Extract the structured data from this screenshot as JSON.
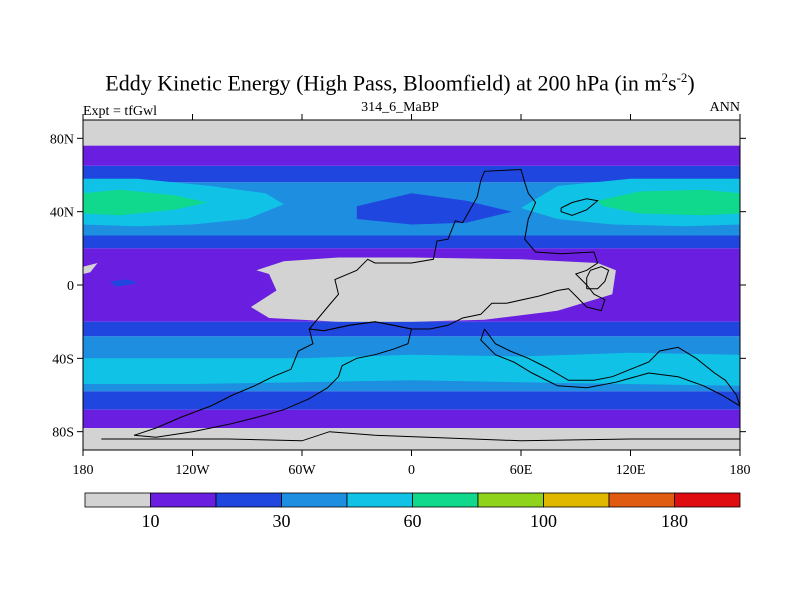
{
  "chart_data": {
    "type": "heatmap",
    "title_main": "Eddy Kinetic Energy (High Pass, Bloomfield) at 200 hPa (in m",
    "title_sup1": "2",
    "title_mid": "s",
    "title_sup2": "-2",
    "title_end": ")",
    "subtitle": "314_6_MaBP",
    "left_label": "Expt = tfGwl",
    "right_label": "ANN",
    "x_ticks": [
      {
        "lon": -180,
        "label": "180"
      },
      {
        "lon": -120,
        "label": "120W"
      },
      {
        "lon": -60,
        "label": "60W"
      },
      {
        "lon": 0,
        "label": "0"
      },
      {
        "lon": 60,
        "label": "60E"
      },
      {
        "lon": 120,
        "label": "120E"
      },
      {
        "lon": 180,
        "label": "180"
      }
    ],
    "y_ticks": [
      {
        "lat": 80,
        "label": "80N"
      },
      {
        "lat": 40,
        "label": "40N"
      },
      {
        "lat": 0,
        "label": "0"
      },
      {
        "lat": -40,
        "label": "40S"
      },
      {
        "lat": -80,
        "label": "80S"
      }
    ],
    "xlim": [
      -180,
      180
    ],
    "ylim": [
      -90,
      90
    ],
    "colorbar": {
      "colors": [
        "#d3d3d3",
        "#6a1fe0",
        "#1f47e0",
        "#1e8ee0",
        "#10c3e6",
        "#10d88c",
        "#8fd41a",
        "#e0b800",
        "#e05a10",
        "#e00d10"
      ],
      "labels": [
        {
          "after": 1,
          "text": "10"
        },
        {
          "after": 3,
          "text": "30"
        },
        {
          "after": 5,
          "text": "60"
        },
        {
          "after": 7,
          "text": "100"
        },
        {
          "after": 9,
          "text": "180"
        }
      ]
    },
    "zonal_bands": [
      {
        "lat_top": 90,
        "lat_bot": 76,
        "level": 0
      },
      {
        "lat_top": 76,
        "lat_bot": 65,
        "level": 1
      },
      {
        "lat_top": 65,
        "lat_bot": 56,
        "level": 2
      },
      {
        "lat_top": 56,
        "lat_bot": 27,
        "level": 3
      },
      {
        "lat_top": 27,
        "lat_bot": 20,
        "level": 2
      },
      {
        "lat_top": 20,
        "lat_bot": -20,
        "level": 1
      },
      {
        "lat_top": -20,
        "lat_bot": -28,
        "level": 2
      },
      {
        "lat_top": -28,
        "lat_bot": -58,
        "level": 3
      },
      {
        "lat_top": -58,
        "lat_bot": -68,
        "level": 2
      },
      {
        "lat_top": -68,
        "lat_bot": -78,
        "level": 1
      },
      {
        "lat_top": -78,
        "lat_bot": -90,
        "level": 0
      }
    ],
    "features": [
      {
        "name": "nh-jet-core-west",
        "level": 4,
        "pts": [
          [
            -180,
            58
          ],
          [
            -150,
            58
          ],
          [
            -110,
            54
          ],
          [
            -80,
            50
          ],
          [
            -70,
            44
          ],
          [
            -90,
            36
          ],
          [
            -120,
            33
          ],
          [
            -150,
            32
          ],
          [
            -180,
            33
          ]
        ]
      },
      {
        "name": "nh-jet-max-west",
        "level": 5,
        "pts": [
          [
            -180,
            50
          ],
          [
            -160,
            52
          ],
          [
            -130,
            49
          ],
          [
            -112,
            45
          ],
          [
            -130,
            41
          ],
          [
            -160,
            38
          ],
          [
            -180,
            39
          ]
        ]
      },
      {
        "name": "nh-jet-core-east",
        "level": 4,
        "pts": [
          [
            60,
            42
          ],
          [
            80,
            54
          ],
          [
            120,
            58
          ],
          [
            160,
            58
          ],
          [
            180,
            58
          ],
          [
            180,
            33
          ],
          [
            150,
            32
          ],
          [
            110,
            33
          ],
          [
            80,
            36
          ]
        ]
      },
      {
        "name": "nh-jet-max-east",
        "level": 5,
        "pts": [
          [
            102,
            46
          ],
          [
            125,
            51
          ],
          [
            160,
            52
          ],
          [
            180,
            50
          ],
          [
            180,
            39
          ],
          [
            160,
            38
          ],
          [
            125,
            39
          ],
          [
            105,
            43
          ]
        ]
      },
      {
        "name": "nh-jet-dip",
        "level": 2,
        "pts": [
          [
            -30,
            43
          ],
          [
            0,
            50
          ],
          [
            30,
            46
          ],
          [
            55,
            40
          ],
          [
            30,
            34
          ],
          [
            0,
            33
          ],
          [
            -30,
            36
          ]
        ]
      },
      {
        "name": "sh-core",
        "level": 4,
        "pts": [
          [
            -180,
            -40
          ],
          [
            -120,
            -40
          ],
          [
            -60,
            -40
          ],
          [
            0,
            -38
          ],
          [
            60,
            -39
          ],
          [
            120,
            -37
          ],
          [
            180,
            -38
          ],
          [
            180,
            -55
          ],
          [
            120,
            -54
          ],
          [
            60,
            -53
          ],
          [
            0,
            -52
          ],
          [
            -60,
            -53
          ],
          [
            -120,
            -54
          ],
          [
            -180,
            -54
          ]
        ]
      },
      {
        "name": "tropical-gap",
        "level": 0,
        "pts": [
          [
            -85,
            8
          ],
          [
            -70,
            13
          ],
          [
            -40,
            15
          ],
          [
            0,
            15
          ],
          [
            60,
            14
          ],
          [
            102,
            12
          ],
          [
            112,
            8
          ],
          [
            110,
            -5
          ],
          [
            80,
            -14
          ],
          [
            40,
            -19
          ],
          [
            0,
            -20
          ],
          [
            -40,
            -20
          ],
          [
            -78,
            -18
          ],
          [
            -88,
            -12
          ],
          [
            -74,
            -3
          ],
          [
            -78,
            6
          ]
        ]
      },
      {
        "name": "east-pacific-gap",
        "level": 0,
        "pts": [
          [
            -180,
            10
          ],
          [
            -172,
            12
          ],
          [
            -176,
            7
          ],
          [
            -180,
            6
          ]
        ]
      },
      {
        "name": "trop-blue-spot",
        "level": 2,
        "pts": [
          [
            -165,
            2
          ],
          [
            -155,
            3
          ],
          [
            -150,
            1
          ],
          [
            -162,
            -1
          ]
        ]
      }
    ],
    "outlines": [
      {
        "name": "north-continent",
        "pts": [
          [
            0,
            12
          ],
          [
            12,
            14
          ],
          [
            14,
            24
          ],
          [
            20,
            25
          ],
          [
            24,
            35
          ],
          [
            28,
            34
          ],
          [
            36,
            48
          ],
          [
            38,
            57
          ],
          [
            40,
            62
          ],
          [
            60,
            63
          ],
          [
            62,
            56
          ],
          [
            64,
            50
          ],
          [
            68,
            45
          ],
          [
            64,
            36
          ],
          [
            62,
            25
          ],
          [
            68,
            18
          ],
          [
            82,
            17
          ],
          [
            100,
            18
          ],
          [
            102,
            12
          ],
          [
            96,
            8
          ],
          [
            90,
            6
          ],
          [
            96,
            0
          ],
          [
            100,
            -5
          ],
          [
            106,
            -8
          ],
          [
            104,
            -14
          ],
          [
            96,
            -12
          ],
          [
            90,
            -6
          ],
          [
            86,
            -2
          ],
          [
            80,
            -3
          ],
          [
            70,
            -6
          ],
          [
            52,
            -10
          ],
          [
            44,
            -10
          ],
          [
            38,
            -16
          ],
          [
            28,
            -18
          ],
          [
            20,
            -22
          ],
          [
            10,
            -24
          ],
          [
            0,
            -24
          ],
          [
            -10,
            -22
          ],
          [
            -20,
            -20
          ],
          [
            -34,
            -22
          ],
          [
            -48,
            -25
          ],
          [
            -56,
            -24
          ],
          [
            -46,
            -12
          ],
          [
            -40,
            -5
          ],
          [
            -42,
            3
          ],
          [
            -30,
            8
          ],
          [
            -24,
            14
          ],
          [
            -20,
            12
          ],
          [
            -10,
            12
          ],
          [
            0,
            12
          ]
        ]
      },
      {
        "name": "south-continent",
        "pts": [
          [
            -56,
            -24
          ],
          [
            -54,
            -32
          ],
          [
            -62,
            -36
          ],
          [
            -66,
            -46
          ],
          [
            -76,
            -50
          ],
          [
            -86,
            -55
          ],
          [
            -98,
            -60
          ],
          [
            -110,
            -66
          ],
          [
            -126,
            -72
          ],
          [
            -140,
            -78
          ],
          [
            -152,
            -82
          ],
          [
            -140,
            -83
          ],
          [
            -120,
            -80
          ],
          [
            -100,
            -76
          ],
          [
            -84,
            -72
          ],
          [
            -70,
            -68
          ],
          [
            -56,
            -62
          ],
          [
            -46,
            -56
          ],
          [
            -40,
            -50
          ],
          [
            -38,
            -44
          ],
          [
            -30,
            -40
          ],
          [
            -20,
            -38
          ],
          [
            -10,
            -35
          ],
          [
            -2,
            -32
          ],
          [
            0,
            -24
          ],
          [
            -10,
            -22
          ],
          [
            -20,
            -20
          ],
          [
            -34,
            -22
          ],
          [
            -48,
            -25
          ],
          [
            -56,
            -24
          ]
        ]
      },
      {
        "name": "sub-continent",
        "pts": [
          [
            40,
            -24
          ],
          [
            46,
            -32
          ],
          [
            54,
            -36
          ],
          [
            64,
            -40
          ],
          [
            74,
            -45
          ],
          [
            86,
            -52
          ],
          [
            100,
            -52
          ],
          [
            110,
            -50
          ],
          [
            120,
            -46
          ],
          [
            130,
            -42
          ],
          [
            136,
            -36
          ],
          [
            146,
            -34
          ],
          [
            156,
            -40
          ],
          [
            166,
            -48
          ],
          [
            172,
            -52
          ],
          [
            178,
            -60
          ],
          [
            180,
            -66
          ],
          [
            170,
            -60
          ],
          [
            160,
            -55
          ],
          [
            146,
            -50
          ],
          [
            130,
            -48
          ],
          [
            112,
            -53
          ],
          [
            96,
            -56
          ],
          [
            80,
            -55
          ],
          [
            66,
            -48
          ],
          [
            56,
            -42
          ],
          [
            46,
            -38
          ],
          [
            38,
            -30
          ],
          [
            40,
            -24
          ]
        ]
      },
      {
        "name": "antarctic-coast",
        "pts": [
          [
            -170,
            -84
          ],
          [
            -100,
            -84
          ],
          [
            -60,
            -85
          ],
          [
            -45,
            -80
          ],
          [
            -20,
            -82
          ],
          [
            60,
            -85
          ],
          [
            120,
            -84
          ],
          [
            180,
            -84
          ]
        ]
      },
      {
        "name": "small-island",
        "pts": [
          [
            82,
            42
          ],
          [
            88,
            45
          ],
          [
            96,
            47
          ],
          [
            102,
            46
          ],
          [
            96,
            41
          ],
          [
            88,
            38
          ],
          [
            82,
            40
          ],
          [
            82,
            42
          ]
        ]
      },
      {
        "name": "peninsula",
        "pts": [
          [
            96,
            -2
          ],
          [
            102,
            -2
          ],
          [
            106,
            2
          ],
          [
            108,
            8
          ],
          [
            104,
            10
          ],
          [
            98,
            8
          ],
          [
            96,
            4
          ],
          [
            96,
            -2
          ]
        ]
      }
    ]
  }
}
